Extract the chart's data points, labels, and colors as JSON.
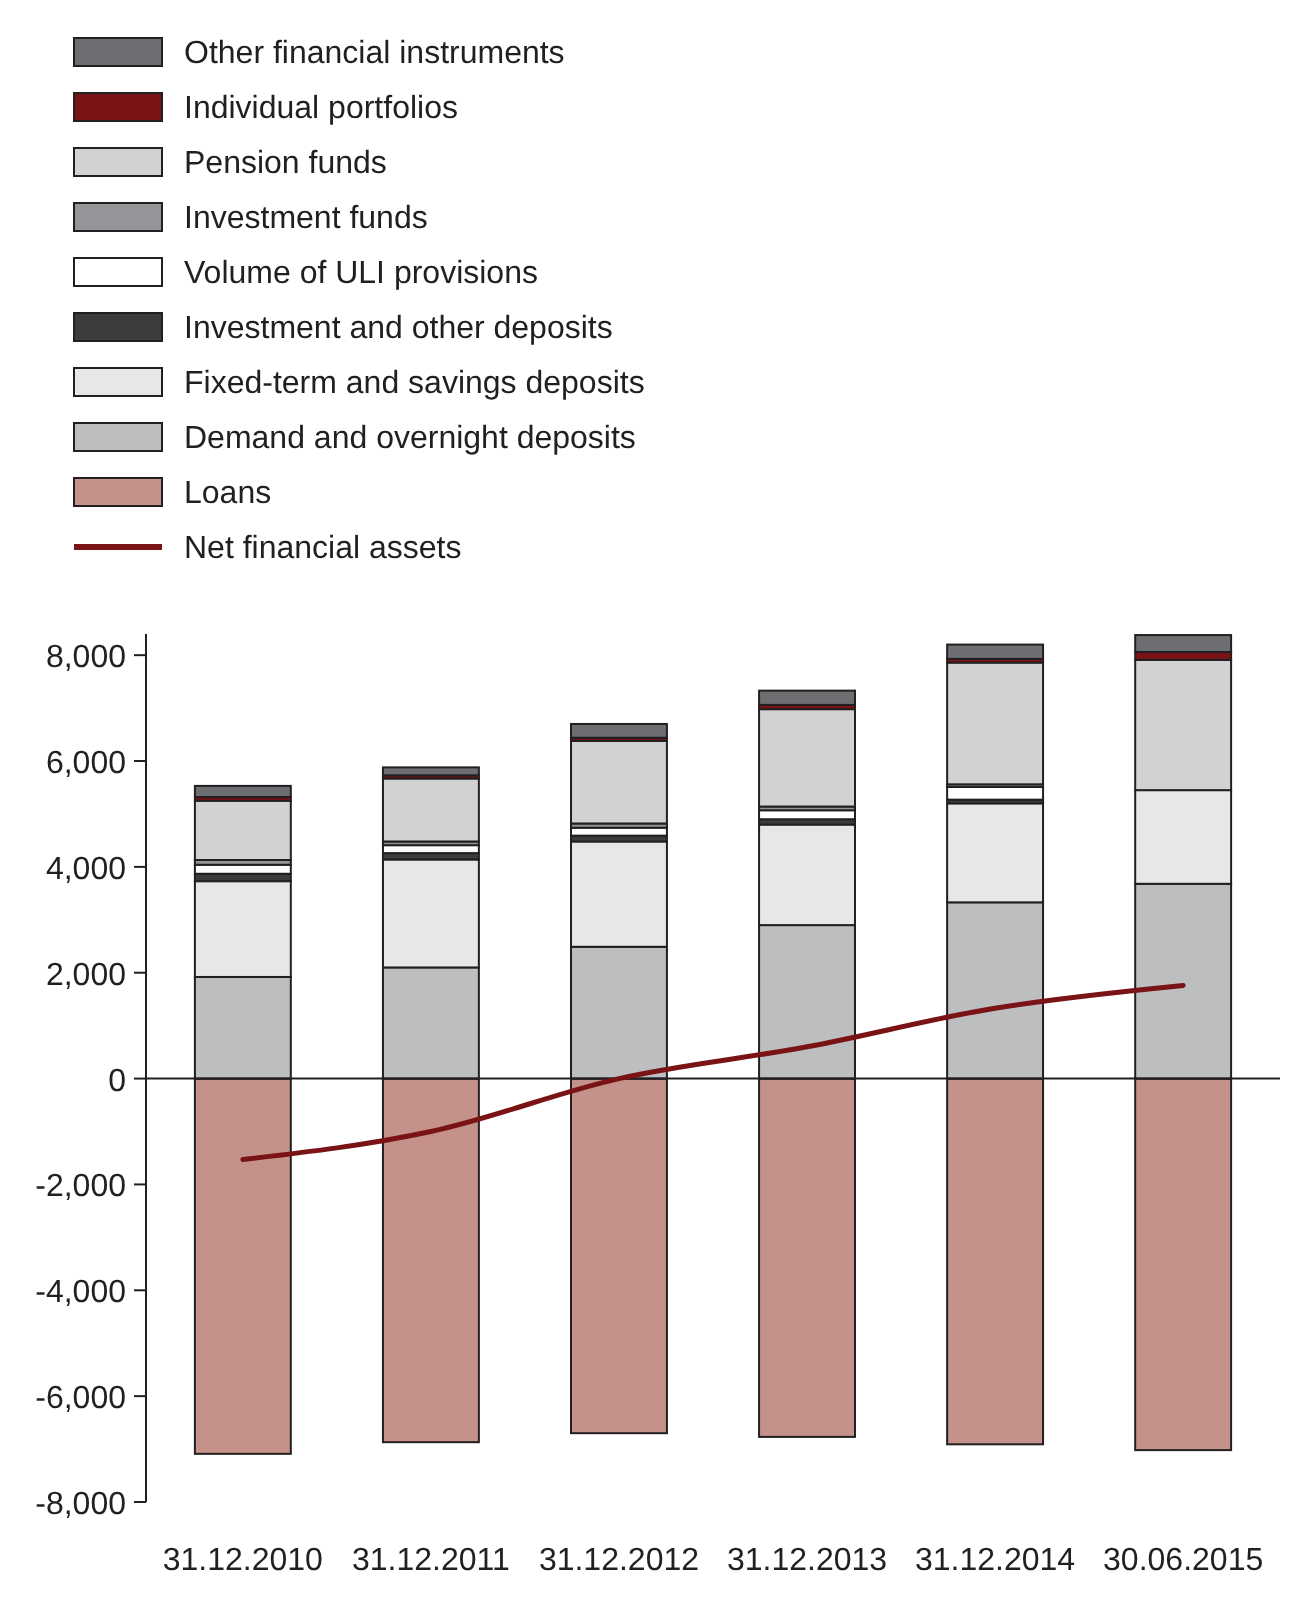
{
  "chart_data": {
    "type": "bar",
    "stacked": true,
    "legend": "top left",
    "ref_lines": [
      {
        "axis": "y",
        "value": 0,
        "color": "#231f20"
      }
    ],
    "categories": [
      "31.12.2010",
      "31.12.2011",
      "31.12.2012",
      "31.12.2013",
      "31.12.2014",
      "30.06.2015"
    ],
    "ylim": [
      -8000,
      8400
    ],
    "yticks": [
      {
        "value": -8000,
        "label": "-8,000"
      },
      {
        "value": -6000,
        "label": "-6,000"
      },
      {
        "value": -4000,
        "label": "-4,000"
      },
      {
        "value": -2000,
        "label": "-2,000"
      },
      0,
      {
        "value": 2000,
        "label": "2,000"
      },
      {
        "value": 4000,
        "label": "4,000"
      },
      {
        "value": 6000,
        "label": "6,000"
      },
      {
        "value": 8000,
        "label": "8,000"
      }
    ],
    "series": [
      {
        "name": "Loans",
        "color": "#c4928a",
        "values": [
          -7090,
          -6870,
          -6700,
          -6770,
          -6910,
          -7020
        ]
      },
      {
        "name": "Demand and overnight deposits",
        "color": "#bcbec0",
        "values": [
          1920,
          2100,
          2490,
          2900,
          3330,
          3680
        ]
      },
      {
        "name": "Fixed-term and savings deposits",
        "color": "#e6e7e8",
        "values": [
          1810,
          2040,
          1990,
          1900,
          1870,
          1770
        ]
      },
      {
        "name": "Investment and other deposits",
        "color": "#3c3c3c",
        "values": [
          140,
          120,
          110,
          100,
          70,
          0
        ]
      },
      {
        "name": "Volume of ULI provisions",
        "color": "#ffffff",
        "values": [
          170,
          150,
          150,
          170,
          240,
          0
        ]
      },
      {
        "name": "Investment funds",
        "color": "#939598",
        "values": [
          90,
          70,
          80,
          70,
          50,
          0
        ]
      },
      {
        "name": "Pension funds",
        "color": "#d1d2d4",
        "values": [
          1120,
          1190,
          1560,
          1840,
          2300,
          2460
        ]
      },
      {
        "name": "Individual portfolios",
        "color": "#7a1315",
        "values": [
          70,
          60,
          60,
          80,
          70,
          150
        ]
      },
      {
        "name": "Other financial instruments",
        "color": "#6d6e71",
        "values": [
          210,
          150,
          260,
          270,
          270,
          320
        ]
      },
      {
        "name": "Net financial assets",
        "type": "line",
        "color": "#7a1315",
        "values": [
          -1530,
          -1000,
          0,
          600,
          1330,
          1760
        ]
      }
    ]
  }
}
